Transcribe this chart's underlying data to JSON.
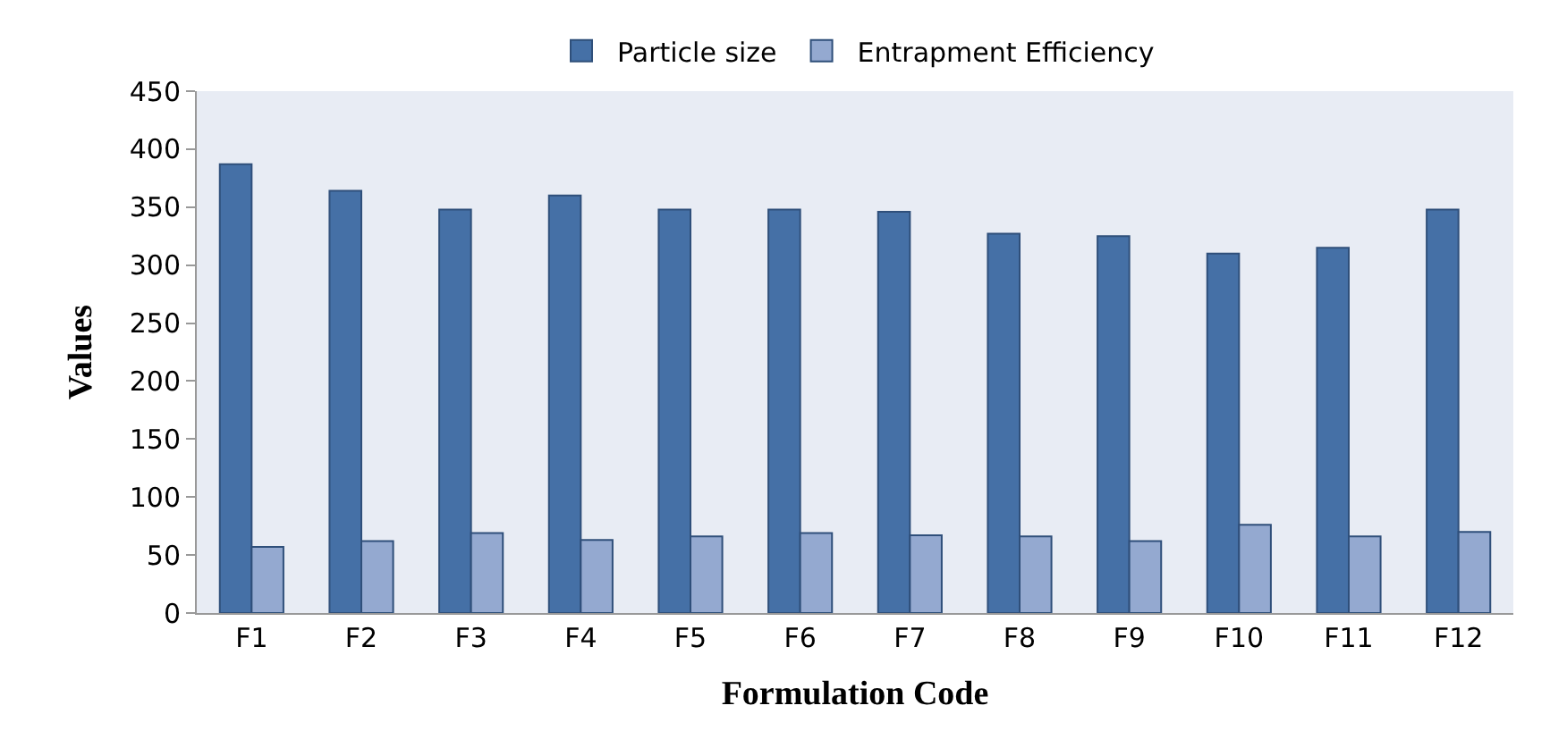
{
  "chart_data": {
    "type": "bar",
    "xlabel": "Formulation Code",
    "ylabel": "Values",
    "categories": [
      "F1",
      "F2",
      "F3",
      "F4",
      "F5",
      "F6",
      "F7",
      "F8",
      "F9",
      "F10",
      "F11",
      "F12"
    ],
    "series": [
      {
        "name": "Particle size",
        "color": "#4570a6",
        "values": [
          387,
          364,
          348,
          360,
          348,
          348,
          346,
          327,
          325,
          310,
          315,
          348
        ]
      },
      {
        "name": "Entrapment Efficiency",
        "color": "#94a9d0",
        "values": [
          57,
          62,
          69,
          63,
          66,
          69,
          67,
          66,
          62,
          76,
          66,
          70
        ]
      }
    ],
    "ylim": [
      0,
      450
    ],
    "yticks": [
      0,
      50,
      100,
      150,
      200,
      250,
      300,
      350,
      400,
      450
    ],
    "grid": false,
    "legend": "top"
  }
}
